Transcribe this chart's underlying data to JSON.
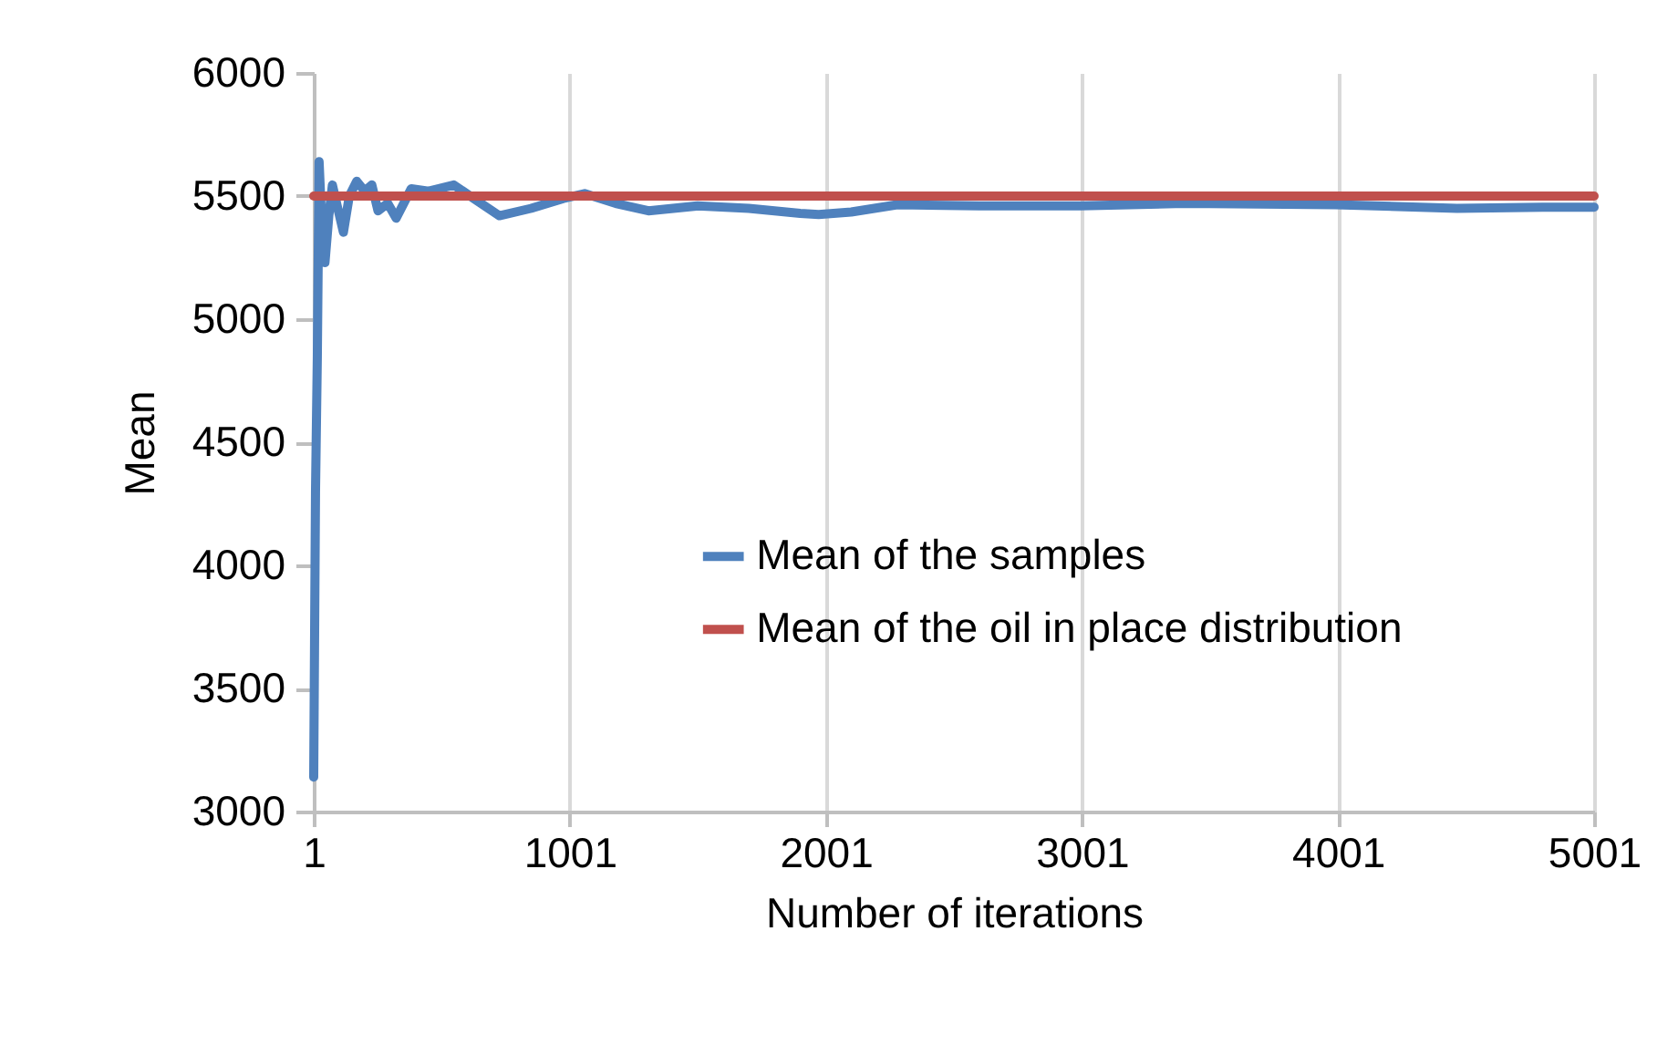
{
  "chart_data": {
    "type": "line",
    "xlabel": "Number of iterations",
    "ylabel": "Mean",
    "xlim": [
      1,
      5001
    ],
    "xticks": [
      1,
      1001,
      2001,
      3001,
      4001,
      5001
    ],
    "ylim": [
      3000,
      6000
    ],
    "yticks": [
      3000,
      3500,
      4000,
      4500,
      5000,
      5500,
      6000
    ],
    "grid": "x",
    "legend": "right",
    "line_style": "solid",
    "marker": "none",
    "series": [
      {
        "name": "Mean of the samples",
        "color": "#4f81bd",
        "x": [
          1,
          8,
          15,
          22,
          30,
          45,
          60,
          74,
          95,
          117,
          140,
          169,
          200,
          228,
          252,
          290,
          323,
          382,
          450,
          548,
          640,
          726,
          850,
          976,
          1059,
          1180,
          1308,
          1500,
          1700,
          1901,
          1973,
          2100,
          2280,
          2600,
          2996,
          3400,
          3990,
          4466,
          4800,
          5001
        ],
        "values": [
          3140,
          4300,
          4840,
          5640,
          5450,
          5230,
          5420,
          5545,
          5450,
          5353,
          5500,
          5560,
          5520,
          5545,
          5440,
          5470,
          5410,
          5530,
          5520,
          5545,
          5480,
          5420,
          5450,
          5490,
          5510,
          5470,
          5440,
          5460,
          5450,
          5430,
          5425,
          5435,
          5465,
          5460,
          5460,
          5470,
          5465,
          5450,
          5455,
          5455
        ]
      },
      {
        "name": "Mean of the oil in place distribution",
        "color": "#c0504d",
        "x": [
          1,
          5001
        ],
        "values": [
          5500,
          5500
        ]
      }
    ]
  }
}
